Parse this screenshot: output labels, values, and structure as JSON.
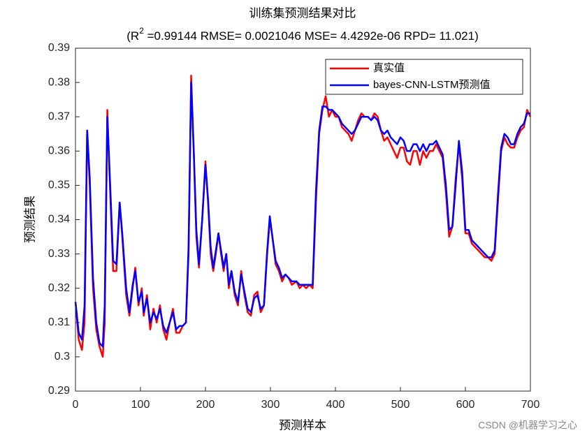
{
  "chart_data": {
    "type": "line",
    "title": "训练集预测结果对比",
    "subtitle_parts": [
      "(R",
      "2",
      " =0.99144 RMSE= 0.0021046 MSE= 4.4292e-06 RPD= 11.021)"
    ],
    "xlabel": "预测样本",
    "ylabel": "预测结果",
    "annotation": "CSDN @机器学习之心",
    "xlim": [
      0,
      700
    ],
    "ylim": [
      0.29,
      0.39
    ],
    "xticks": [
      0,
      100,
      200,
      300,
      400,
      500,
      600,
      700
    ],
    "yticks": [
      0.29,
      0.3,
      0.31,
      0.32,
      0.33,
      0.34,
      0.35,
      0.36,
      0.37,
      0.38,
      0.39
    ],
    "grid": false,
    "legend": "upper right",
    "x": [
      0,
      5,
      10,
      14,
      18,
      22,
      27,
      32,
      37,
      42,
      45,
      49,
      53,
      58,
      63,
      68,
      72,
      78,
      83,
      88,
      92,
      97,
      102,
      105,
      110,
      115,
      120,
      125,
      130,
      135,
      140,
      145,
      150,
      155,
      160,
      165,
      170,
      174,
      178,
      182,
      186,
      190,
      195,
      200,
      204,
      208,
      212,
      216,
      220,
      224,
      228,
      232,
      236,
      240,
      245,
      250,
      255,
      260,
      265,
      270,
      275,
      280,
      285,
      290,
      295,
      299,
      303,
      308,
      313,
      318,
      323,
      328,
      333,
      340,
      345,
      350,
      355,
      360,
      365,
      370,
      375,
      380,
      385,
      390,
      395,
      400,
      405,
      410,
      415,
      420,
      425,
      430,
      435,
      440,
      445,
      450,
      455,
      460,
      465,
      470,
      475,
      480,
      485,
      490,
      495,
      500,
      505,
      510,
      515,
      520,
      525,
      530,
      535,
      540,
      545,
      550,
      555,
      560,
      565,
      570,
      575,
      580,
      585,
      590,
      595,
      600,
      605,
      610,
      615,
      620,
      625,
      630,
      635,
      640,
      645,
      650,
      655,
      660,
      665,
      670,
      675,
      680,
      685,
      690,
      695,
      700
    ],
    "series": [
      {
        "name": "真实值",
        "color": "#ff0000",
        "values": [
          0.316,
          0.305,
          0.302,
          0.31,
          0.366,
          0.35,
          0.32,
          0.308,
          0.303,
          0.3,
          0.31,
          0.372,
          0.35,
          0.325,
          0.325,
          0.345,
          0.335,
          0.318,
          0.312,
          0.32,
          0.326,
          0.315,
          0.32,
          0.312,
          0.318,
          0.308,
          0.314,
          0.31,
          0.315,
          0.308,
          0.305,
          0.31,
          0.314,
          0.307,
          0.307,
          0.309,
          0.31,
          0.33,
          0.382,
          0.36,
          0.335,
          0.326,
          0.34,
          0.357,
          0.345,
          0.33,
          0.325,
          0.33,
          0.336,
          0.33,
          0.325,
          0.33,
          0.32,
          0.325,
          0.318,
          0.315,
          0.325,
          0.318,
          0.313,
          0.312,
          0.318,
          0.319,
          0.313,
          0.315,
          0.33,
          0.34,
          0.335,
          0.327,
          0.325,
          0.322,
          0.324,
          0.323,
          0.321,
          0.322,
          0.32,
          0.321,
          0.32,
          0.321,
          0.32,
          0.345,
          0.365,
          0.372,
          0.376,
          0.37,
          0.372,
          0.37,
          0.37,
          0.367,
          0.366,
          0.365,
          0.363,
          0.366,
          0.369,
          0.371,
          0.37,
          0.37,
          0.369,
          0.371,
          0.37,
          0.366,
          0.363,
          0.364,
          0.362,
          0.36,
          0.358,
          0.361,
          0.361,
          0.357,
          0.356,
          0.36,
          0.36,
          0.356,
          0.36,
          0.358,
          0.36,
          0.36,
          0.362,
          0.36,
          0.358,
          0.348,
          0.335,
          0.338,
          0.352,
          0.362,
          0.352,
          0.336,
          0.336,
          0.333,
          0.332,
          0.331,
          0.33,
          0.329,
          0.329,
          0.328,
          0.33,
          0.345,
          0.36,
          0.364,
          0.362,
          0.361,
          0.361,
          0.364,
          0.366,
          0.367,
          0.372,
          0.37
        ]
      },
      {
        "name": "bayes-CNN-LSTM预测值",
        "color": "#0000ff",
        "values": [
          0.316,
          0.307,
          0.305,
          0.315,
          0.366,
          0.352,
          0.323,
          0.31,
          0.304,
          0.303,
          0.315,
          0.37,
          0.352,
          0.328,
          0.327,
          0.345,
          0.336,
          0.32,
          0.313,
          0.321,
          0.325,
          0.316,
          0.319,
          0.313,
          0.317,
          0.31,
          0.313,
          0.311,
          0.314,
          0.309,
          0.307,
          0.31,
          0.313,
          0.308,
          0.309,
          0.309,
          0.31,
          0.332,
          0.38,
          0.36,
          0.337,
          0.327,
          0.34,
          0.356,
          0.346,
          0.332,
          0.326,
          0.331,
          0.336,
          0.331,
          0.326,
          0.33,
          0.321,
          0.325,
          0.319,
          0.316,
          0.324,
          0.319,
          0.314,
          0.313,
          0.317,
          0.318,
          0.314,
          0.315,
          0.331,
          0.341,
          0.335,
          0.328,
          0.326,
          0.323,
          0.324,
          0.323,
          0.322,
          0.322,
          0.321,
          0.321,
          0.321,
          0.321,
          0.321,
          0.348,
          0.366,
          0.373,
          0.373,
          0.372,
          0.372,
          0.371,
          0.37,
          0.368,
          0.367,
          0.366,
          0.365,
          0.366,
          0.368,
          0.37,
          0.37,
          0.37,
          0.369,
          0.37,
          0.369,
          0.366,
          0.365,
          0.366,
          0.364,
          0.363,
          0.362,
          0.364,
          0.363,
          0.36,
          0.36,
          0.362,
          0.362,
          0.36,
          0.362,
          0.36,
          0.362,
          0.362,
          0.363,
          0.361,
          0.359,
          0.35,
          0.337,
          0.338,
          0.35,
          0.363,
          0.354,
          0.337,
          0.337,
          0.334,
          0.333,
          0.332,
          0.331,
          0.33,
          0.329,
          0.329,
          0.331,
          0.347,
          0.361,
          0.365,
          0.364,
          0.362,
          0.362,
          0.365,
          0.367,
          0.368,
          0.371,
          0.371
        ]
      }
    ]
  }
}
